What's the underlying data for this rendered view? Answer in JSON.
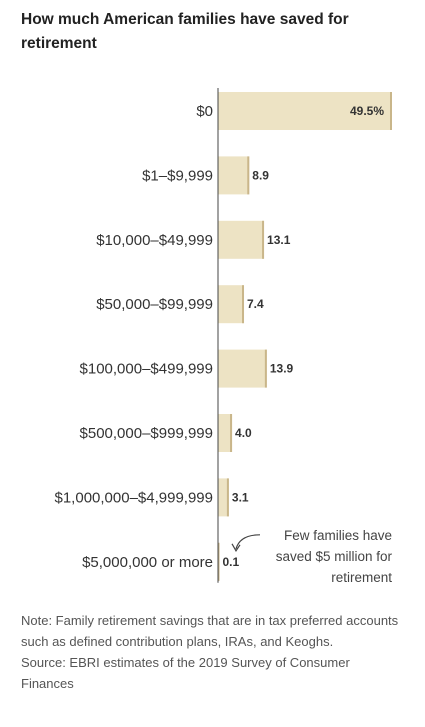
{
  "chart_data": {
    "type": "bar",
    "orientation": "horizontal",
    "title": "How much American families have saved for retirement",
    "categories": [
      "$0",
      "$1–$9,999",
      "$10,000–$49,999",
      "$50,000–$99,999",
      "$100,000–$499,999",
      "$500,000–$999,999",
      "$1,000,000–$4,999,999",
      "$5,000,000 or more"
    ],
    "values": [
      49.5,
      8.9,
      13.1,
      7.4,
      13.9,
      4.0,
      3.1,
      0.1
    ],
    "value_labels": [
      "49.5%",
      "8.9",
      "13.1",
      "7.4",
      "13.9",
      "4.0",
      "3.1",
      "0.1"
    ],
    "annotation": {
      "lines": [
        "Few families have",
        "saved $5 million for",
        "retirement"
      ]
    },
    "colors": {
      "bar": "#ede3c4",
      "bar_edge": "#c9b68a",
      "axis": "#444444"
    }
  },
  "note_text": "Note: Family retirement savings that are in tax preferred accounts such as defined contribution plans, IRAs, and Keoghs.",
  "source_text": "Source: EBRI estimates of the 2019 Survey of Consumer Finances"
}
